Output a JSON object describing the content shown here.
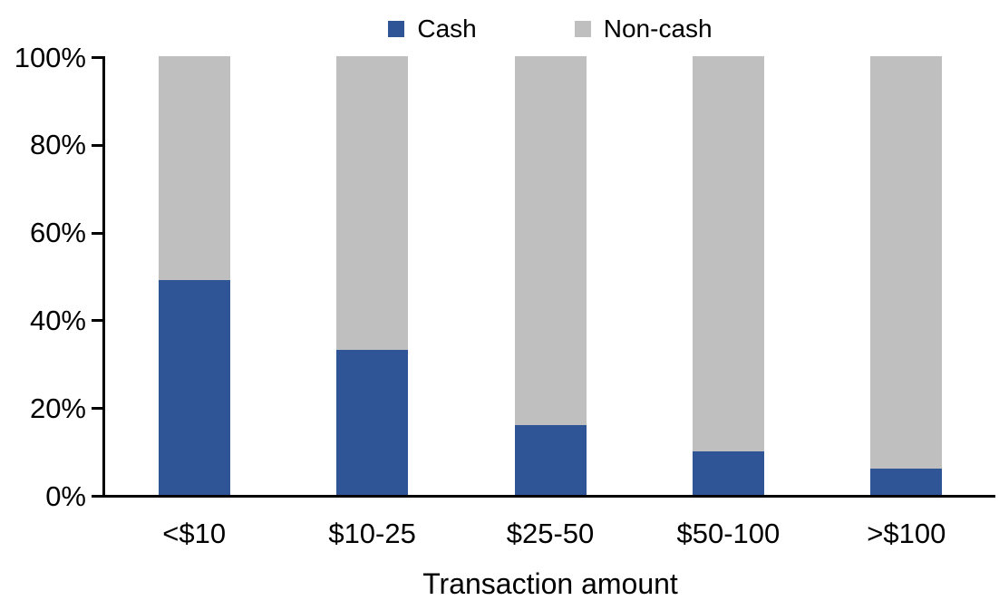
{
  "chart_data": {
    "type": "bar",
    "stacked": true,
    "stacked_100_percent": true,
    "categories": [
      "<$10",
      "$10-25",
      "$25-50",
      "$50-100",
      ">$100"
    ],
    "series": [
      {
        "name": "Cash",
        "color": "#2F5597",
        "values": [
          49,
          33,
          16,
          10,
          6
        ]
      },
      {
        "name": "Non-cash",
        "color": "#BFBFBF",
        "values": [
          51,
          67,
          84,
          90,
          94
        ]
      }
    ],
    "title": "",
    "xlabel": "Transaction amount",
    "ylabel": "",
    "ylim": [
      0,
      100
    ],
    "y_ticks": [
      {
        "label": "100%",
        "value": 100
      },
      {
        "label": "80%",
        "value": 80
      },
      {
        "label": "60%",
        "value": 60
      },
      {
        "label": "40%",
        "value": 40
      },
      {
        "label": "20%",
        "value": 20
      },
      {
        "label": "0%",
        "value": 0
      }
    ],
    "legend_position": "top",
    "grid": false,
    "axis_color": "#000000",
    "background_color": "#FFFFFF"
  }
}
